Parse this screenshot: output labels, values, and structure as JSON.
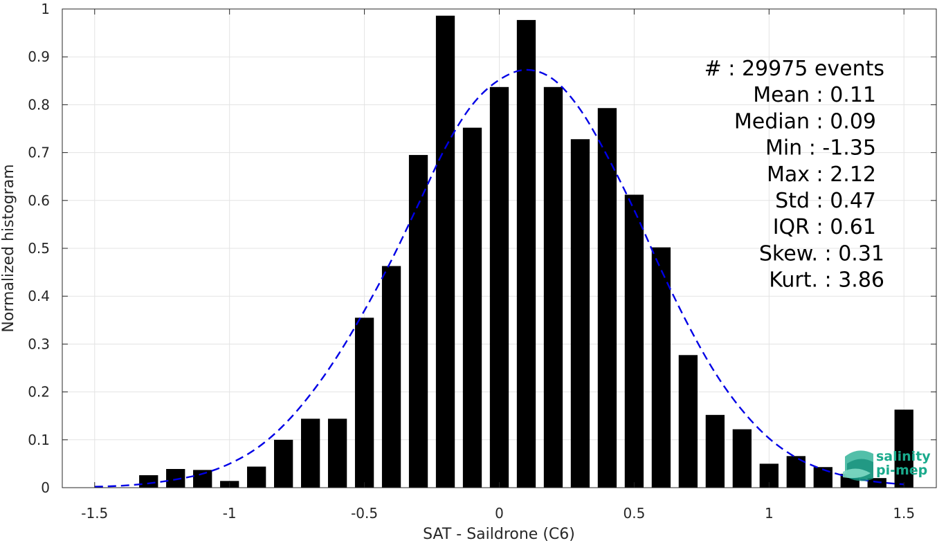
{
  "chart_data": {
    "type": "bar",
    "xlabel": "SAT - Saildrone (C6)",
    "ylabel": "Normalized histogram",
    "xlim": [
      -1.62,
      1.62
    ],
    "ylim": [
      0,
      1
    ],
    "grid": true,
    "x_ticks": [
      -1.5,
      -1,
      -0.5,
      0,
      0.5,
      1,
      1.5
    ],
    "x_tick_labels": [
      "-1.5",
      "-1",
      "-0.5",
      "0",
      "0.5",
      "1",
      "1.5"
    ],
    "y_ticks": [
      0,
      0.1,
      0.2,
      0.3,
      0.4,
      0.5,
      0.6,
      0.7,
      0.8,
      0.9,
      1
    ],
    "y_tick_labels": [
      "0",
      "0.1",
      "0.2",
      "0.3",
      "0.4",
      "0.5",
      "0.6",
      "0.7",
      "0.8",
      "0.9",
      "1"
    ],
    "bar_width": 0.07,
    "bar_color": "#000000",
    "bars": {
      "x": [
        -1.3,
        -1.2,
        -1.1,
        -1.0,
        -0.9,
        -0.8,
        -0.7,
        -0.6,
        -0.5,
        -0.4,
        -0.3,
        -0.2,
        -0.1,
        0.0,
        0.1,
        0.2,
        0.3,
        0.4,
        0.5,
        0.6,
        0.7,
        0.8,
        0.9,
        1.0,
        1.1,
        1.2,
        1.3,
        1.4,
        1.5
      ],
      "y": [
        0.026,
        0.039,
        0.037,
        0.014,
        0.044,
        0.1,
        0.144,
        0.144,
        0.355,
        0.463,
        0.695,
        0.986,
        0.752,
        0.837,
        0.977,
        0.837,
        0.728,
        0.793,
        0.612,
        0.502,
        0.277,
        0.152,
        0.122,
        0.05,
        0.066,
        0.043,
        0.029,
        0.02,
        0.163
      ]
    },
    "fit_curve": {
      "style": "dashed",
      "color": "#0000e6",
      "x": [
        -1.5,
        -1.4,
        -1.3,
        -1.2,
        -1.1,
        -1.0,
        -0.9,
        -0.8,
        -0.7,
        -0.6,
        -0.5,
        -0.4,
        -0.3,
        -0.2,
        -0.1,
        0.0,
        0.1,
        0.2,
        0.3,
        0.4,
        0.5,
        0.6,
        0.7,
        0.8,
        0.9,
        1.0,
        1.1,
        1.2,
        1.3,
        1.4,
        1.5
      ],
      "y": [
        0.002,
        0.004,
        0.009,
        0.017,
        0.029,
        0.05,
        0.082,
        0.13,
        0.195,
        0.275,
        0.37,
        0.475,
        0.592,
        0.71,
        0.8,
        0.852,
        0.873,
        0.853,
        0.79,
        0.693,
        0.58,
        0.455,
        0.34,
        0.24,
        0.162,
        0.103,
        0.063,
        0.038,
        0.022,
        0.012,
        0.007
      ]
    },
    "stats": [
      {
        "label": "#",
        "sep": " : ",
        "value": "29975 events"
      },
      {
        "label": "Mean",
        "sep": " : ",
        "value": "0.11"
      },
      {
        "label": "Median",
        "sep": " : ",
        "value": "0.09"
      },
      {
        "label": "Min",
        "sep": " : ",
        "value": "-1.35"
      },
      {
        "label": "Max",
        "sep": " : ",
        "value": "2.12"
      },
      {
        "label": "Std",
        "sep": " : ",
        "value": "0.47"
      },
      {
        "label": "IQR",
        "sep": " : ",
        "value": "0.61"
      },
      {
        "label": "Skew.",
        "sep": " : ",
        "value": "0.31"
      },
      {
        "label": "Kurt.",
        "sep": " : ",
        "value": "3.86"
      }
    ]
  },
  "logo": {
    "line1": "salinity",
    "line2": "pi-mep",
    "color": "#1aaa8c"
  }
}
